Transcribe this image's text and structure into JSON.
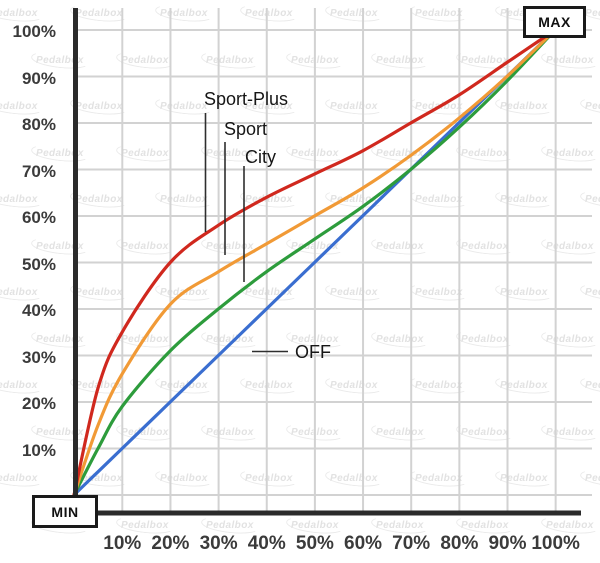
{
  "watermark": {
    "text": "Pedalbox"
  },
  "endpoints": {
    "min": "MIN",
    "max": "MAX"
  },
  "axes": {
    "x_ticks": [
      "10%",
      "20%",
      "30%",
      "40%",
      "50%",
      "60%",
      "70%",
      "80%",
      "90%",
      "100%"
    ],
    "y_ticks": [
      "100%",
      "90%",
      "80%",
      "70%",
      "60%",
      "50%",
      "40%",
      "30%",
      "20%",
      "10%"
    ]
  },
  "annotations": [
    {
      "label": "Sport-Plus"
    },
    {
      "label": "Sport"
    },
    {
      "label": "City"
    },
    {
      "label": "OFF"
    }
  ],
  "chart_data": {
    "type": "line",
    "title": "",
    "xlabel": "",
    "ylabel": "",
    "xlim": [
      0,
      100
    ],
    "ylim": [
      0,
      100
    ],
    "grid": true,
    "legend_position": "inline-annotations",
    "x": [
      0,
      5,
      10,
      20,
      30,
      40,
      50,
      60,
      70,
      80,
      90,
      100
    ],
    "series": [
      {
        "name": "Sport-Plus",
        "color": "#d0281e",
        "values": [
          0,
          23,
          35,
          50,
          58,
          64,
          69,
          74,
          80,
          86,
          93,
          100
        ]
      },
      {
        "name": "Sport",
        "color": "#f19a36",
        "values": [
          0,
          15,
          26,
          41,
          48,
          54,
          60,
          66,
          73,
          81,
          90,
          100
        ]
      },
      {
        "name": "City",
        "color": "#2d9c3c",
        "values": [
          0,
          10,
          19,
          31,
          40,
          48,
          55,
          62,
          70,
          79,
          89,
          100
        ]
      },
      {
        "name": "OFF",
        "color": "#3a6ed0",
        "values": [
          0,
          5,
          10,
          20,
          30,
          40,
          50,
          60,
          70,
          80,
          90,
          100
        ]
      }
    ]
  },
  "colors": {
    "background": "#ffffff",
    "grid": "#d2d2d2",
    "axis": "#2b2b2b",
    "tick_label": "#3b3b3b",
    "annotation_line": "#2e2e2e",
    "watermark": "#e2e2e2"
  }
}
